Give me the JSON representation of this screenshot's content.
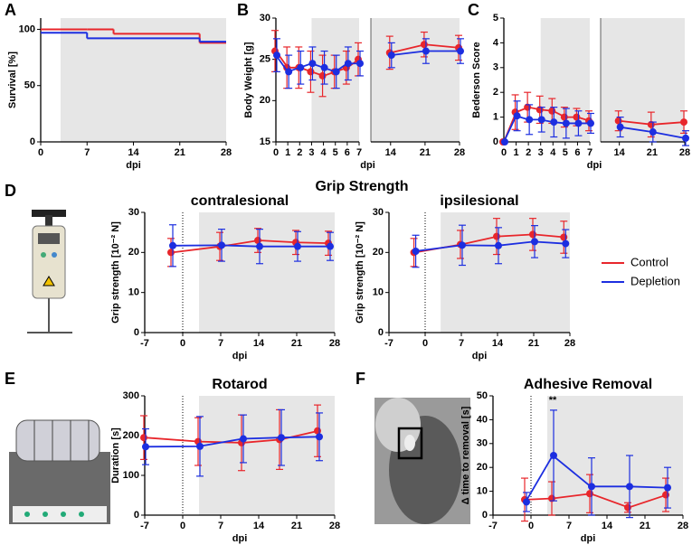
{
  "legend": {
    "entries": [
      {
        "name": "Control",
        "color": "#e8262b"
      },
      {
        "name": "Depletion",
        "color": "#1c2ee0"
      }
    ]
  },
  "chart_data": [
    {
      "type": "step",
      "panel": "A",
      "ylabel": "Survival [%]",
      "xlabel": "dpi",
      "xlim": [
        0,
        28
      ],
      "xticks": [
        0,
        7,
        14,
        21,
        28
      ],
      "ylim": [
        0,
        110
      ],
      "yticks": [
        0,
        50,
        100
      ],
      "shade": [
        3,
        28
      ],
      "x": [
        0,
        7,
        11,
        24
      ],
      "series": [
        {
          "color": "#e8262b",
          "values": [
            100,
            100,
            96,
            88
          ]
        },
        {
          "color": "#1c2ee0",
          "values": [
            97,
            92,
            92,
            89
          ]
        }
      ]
    },
    {
      "type": "line",
      "panel": "B",
      "ylabel": "Body Weight [g]",
      "xlabel": "dpi",
      "x_segments": [
        {
          "xlim": [
            0,
            7
          ],
          "xticks": [
            0,
            1,
            2,
            3,
            4,
            5,
            6,
            7
          ]
        },
        {
          "xlim": [
            10,
            28
          ],
          "xticks": [
            14,
            21,
            28
          ]
        }
      ],
      "ylim": [
        15,
        30
      ],
      "yticks": [
        15,
        20,
        25,
        30
      ],
      "shade": [
        3,
        28
      ],
      "x": [
        0,
        1,
        2,
        3,
        4,
        5,
        6,
        7,
        14,
        21,
        28
      ],
      "series": [
        {
          "color": "#e8262b",
          "values": [
            26,
            24,
            24,
            23.5,
            23,
            23.5,
            24,
            25,
            25.8,
            26.8,
            26.4
          ],
          "errors": [
            2.5,
            2.5,
            2.5,
            2.5,
            2.5,
            2,
            2,
            2,
            2,
            1.5,
            1.5
          ]
        },
        {
          "color": "#1c2ee0",
          "values": [
            25.5,
            23.5,
            24,
            24.5,
            24,
            23.5,
            24.5,
            24.5,
            25.5,
            26,
            26
          ],
          "errors": [
            2,
            2,
            2,
            2,
            2,
            2,
            2,
            1.5,
            1.5,
            1.5,
            1.5
          ]
        }
      ]
    },
    {
      "type": "line",
      "panel": "C",
      "ylabel": "Bederson Score",
      "xlabel": "dpi",
      "x_segments": [
        {
          "xlim": [
            0,
            7
          ],
          "xticks": [
            0,
            1,
            2,
            3,
            4,
            5,
            6,
            7
          ]
        },
        {
          "xlim": [
            10,
            28
          ],
          "xticks": [
            14,
            21,
            28
          ]
        }
      ],
      "ylim": [
        0,
        5
      ],
      "yticks": [
        0,
        1,
        2,
        3,
        4,
        5
      ],
      "shade": [
        3,
        28
      ],
      "x": [
        0,
        1,
        2,
        3,
        4,
        5,
        6,
        7,
        14,
        21,
        28
      ],
      "series": [
        {
          "color": "#e8262b",
          "values": [
            0,
            1.2,
            1.4,
            1.3,
            1.25,
            1,
            1,
            0.85,
            0.85,
            0.7,
            0.8
          ],
          "errors": [
            0,
            0.7,
            0.6,
            0.55,
            0.5,
            0.4,
            0.35,
            0.4,
            0.4,
            0.5,
            0.45
          ]
        },
        {
          "color": "#1c2ee0",
          "values": [
            0,
            1.05,
            0.9,
            0.9,
            0.8,
            0.75,
            0.75,
            0.75,
            0.6,
            0.4,
            0.15
          ],
          "errors": [
            0,
            0.6,
            0.6,
            0.5,
            0.6,
            0.6,
            0.5,
            0.4,
            0.4,
            0.4,
            0.3
          ]
        }
      ]
    },
    {
      "type": "line",
      "panel": "D",
      "group_title": "Grip Strength",
      "title": "contralesional",
      "ylabel": "Grip strength [10⁻² N]",
      "xlabel": "dpi",
      "xlim": [
        -7,
        28
      ],
      "xticks": [
        -7,
        0,
        7,
        14,
        21,
        28
      ],
      "ylim": [
        0,
        30
      ],
      "yticks": [
        0,
        10,
        20,
        30
      ],
      "shade": [
        3,
        28
      ],
      "vline": 0,
      "x": [
        -2,
        7,
        14,
        21,
        27
      ],
      "series": [
        {
          "color": "#e8262b",
          "values": [
            20,
            21.5,
            23,
            22.5,
            22.3
          ],
          "errors": [
            3.5,
            3.5,
            3,
            3,
            3
          ]
        },
        {
          "color": "#1c2ee0",
          "values": [
            21.7,
            21.8,
            21.5,
            21.5,
            21.5
          ],
          "errors": [
            5.2,
            4,
            4.3,
            3.7,
            3.5
          ]
        }
      ]
    },
    {
      "type": "line",
      "title": "ipsilesional",
      "ylabel": "Grip strength [10⁻² N]",
      "xlabel": "dpi",
      "xlim": [
        -7,
        28
      ],
      "xticks": [
        -7,
        0,
        7,
        14,
        21,
        28
      ],
      "ylim": [
        0,
        30
      ],
      "yticks": [
        0,
        10,
        20,
        30
      ],
      "shade": [
        3,
        28
      ],
      "vline": 0,
      "x": [
        -2,
        7,
        14,
        21,
        27
      ],
      "series": [
        {
          "color": "#e8262b",
          "values": [
            20,
            22,
            24,
            24.5,
            23.8
          ],
          "errors": [
            3.5,
            3.5,
            4.5,
            4,
            4
          ]
        },
        {
          "color": "#1c2ee0",
          "values": [
            20.3,
            21.8,
            21.7,
            22.7,
            22.2
          ],
          "errors": [
            4,
            5,
            4.5,
            4,
            3.5
          ]
        }
      ]
    },
    {
      "type": "line",
      "panel": "E",
      "title": "Rotarod",
      "ylabel": "Duration [s]",
      "xlabel": "dpi",
      "xlim": [
        -7,
        28
      ],
      "xticks": [
        -7,
        0,
        7,
        14,
        21,
        28
      ],
      "ylim": [
        0,
        300
      ],
      "yticks": [
        0,
        100,
        200,
        300
      ],
      "shade": [
        3,
        28
      ],
      "vline": 0,
      "x": [
        -7,
        3,
        11,
        18,
        25
      ],
      "series": [
        {
          "color": "#e8262b",
          "values": [
            195,
            185,
            182,
            190,
            212
          ],
          "errors": [
            55,
            60,
            70,
            75,
            65
          ]
        },
        {
          "color": "#1c2ee0",
          "values": [
            172,
            173,
            192,
            195,
            197
          ],
          "errors": [
            45,
            75,
            60,
            70,
            60
          ]
        }
      ]
    },
    {
      "type": "line",
      "panel": "F",
      "title": "Adhesive Removal",
      "ylabel": "Δ time to removal [s]",
      "xlabel": "dpi",
      "xlim": [
        -7,
        28
      ],
      "xticks": [
        -7,
        0,
        7,
        14,
        21,
        28
      ],
      "ylim": [
        0,
        50
      ],
      "yticks": [
        0,
        10,
        20,
        30,
        40,
        50
      ],
      "shade": [
        3,
        28
      ],
      "vline": 0,
      "x": [
        -1,
        4,
        11,
        18,
        25
      ],
      "annotations": [
        {
          "text": "**",
          "x": 4
        }
      ],
      "series": [
        {
          "color": "#e8262b",
          "values": [
            6.5,
            7,
            9,
            3.2,
            8.5
          ],
          "errors": [
            9,
            7,
            8,
            2,
            7
          ]
        },
        {
          "color": "#1c2ee0",
          "values": [
            5.5,
            25,
            12,
            12,
            11.5
          ],
          "errors": [
            4,
            19,
            12,
            13,
            8.5
          ]
        }
      ]
    }
  ]
}
